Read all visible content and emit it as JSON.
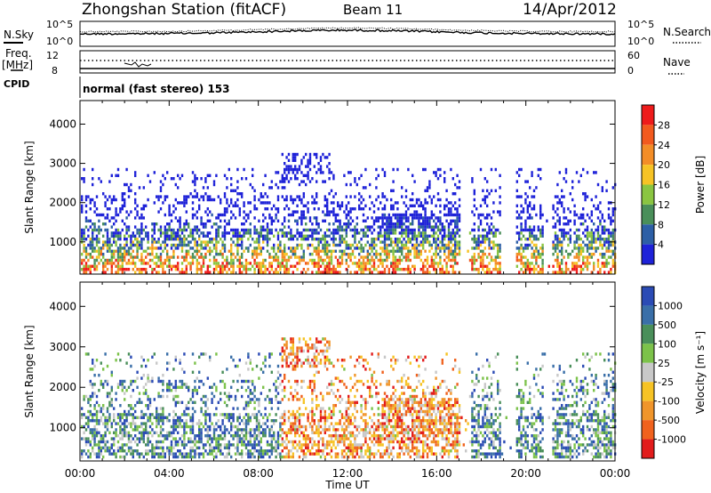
{
  "header": {
    "station": "Zhongshan Station (fitACF)",
    "beam": "Beam 11",
    "date": "14/Apr/2012"
  },
  "summary_panels": {
    "nsky_label": "N.Sky",
    "nsky_ticks": [
      "10^5",
      "10^0"
    ],
    "nsearch_label": "N.Search",
    "nsearch_ticks": [
      "10^5",
      "10^0"
    ],
    "freq_label": "Freq.",
    "freq_unit": "[MHz]",
    "freq_ticks": [
      "12",
      "8"
    ],
    "nave_label": "Nave",
    "nave_ticks": [
      "60",
      "0"
    ],
    "cpid_label": "CPID",
    "cpid_value": "normal (fast stereo) 153"
  },
  "chart_data": [
    {
      "type": "heatmap",
      "quantity": "Power",
      "ylabel": "Slant Range [km]",
      "yticks": [
        1000,
        2000,
        3000,
        4000
      ],
      "ylim": [
        180,
        4600
      ],
      "xlabel": "Time UT",
      "xticks": [
        "00:00",
        "04:00",
        "08:00",
        "12:00",
        "16:00",
        "20:00",
        "00:00"
      ],
      "xlim_hours": [
        0,
        24
      ],
      "colorbar": {
        "label": "Power [dB]",
        "tick_labels": [
          "28",
          "24",
          "20",
          "16",
          "12",
          "8",
          "4"
        ],
        "colors": [
          "#ee1b1b",
          "#f25a1e",
          "#f38d27",
          "#f6c325",
          "#8ac541",
          "#4a8f5a",
          "#2d5fa6",
          "#1e22d8"
        ]
      }
    },
    {
      "type": "heatmap",
      "quantity": "Velocity",
      "ylabel": "Slant Range [km]",
      "yticks": [
        1000,
        2000,
        3000,
        4000
      ],
      "ylim": [
        180,
        4600
      ],
      "xlabel": "Time UT",
      "xticks": [
        "00:00",
        "04:00",
        "08:00",
        "12:00",
        "16:00",
        "20:00",
        "00:00"
      ],
      "xlim_hours": [
        0,
        24
      ],
      "colorbar": {
        "label": "Velocity [m s⁻¹]",
        "tick_labels": [
          "1000",
          "500",
          "100",
          "25",
          "-25",
          "-100",
          "-500",
          "-1000"
        ],
        "colors": [
          "#2b4bb5",
          "#3a6fa8",
          "#4a8f5a",
          "#7cc24a",
          "#c8c8c8",
          "#f6c325",
          "#f0952b",
          "#f0621e",
          "#e21c1c"
        ]
      }
    }
  ],
  "xaxis": {
    "label": "Time UT",
    "ticks": [
      "00:00",
      "04:00",
      "08:00",
      "12:00",
      "16:00",
      "20:00",
      "00:00"
    ]
  }
}
